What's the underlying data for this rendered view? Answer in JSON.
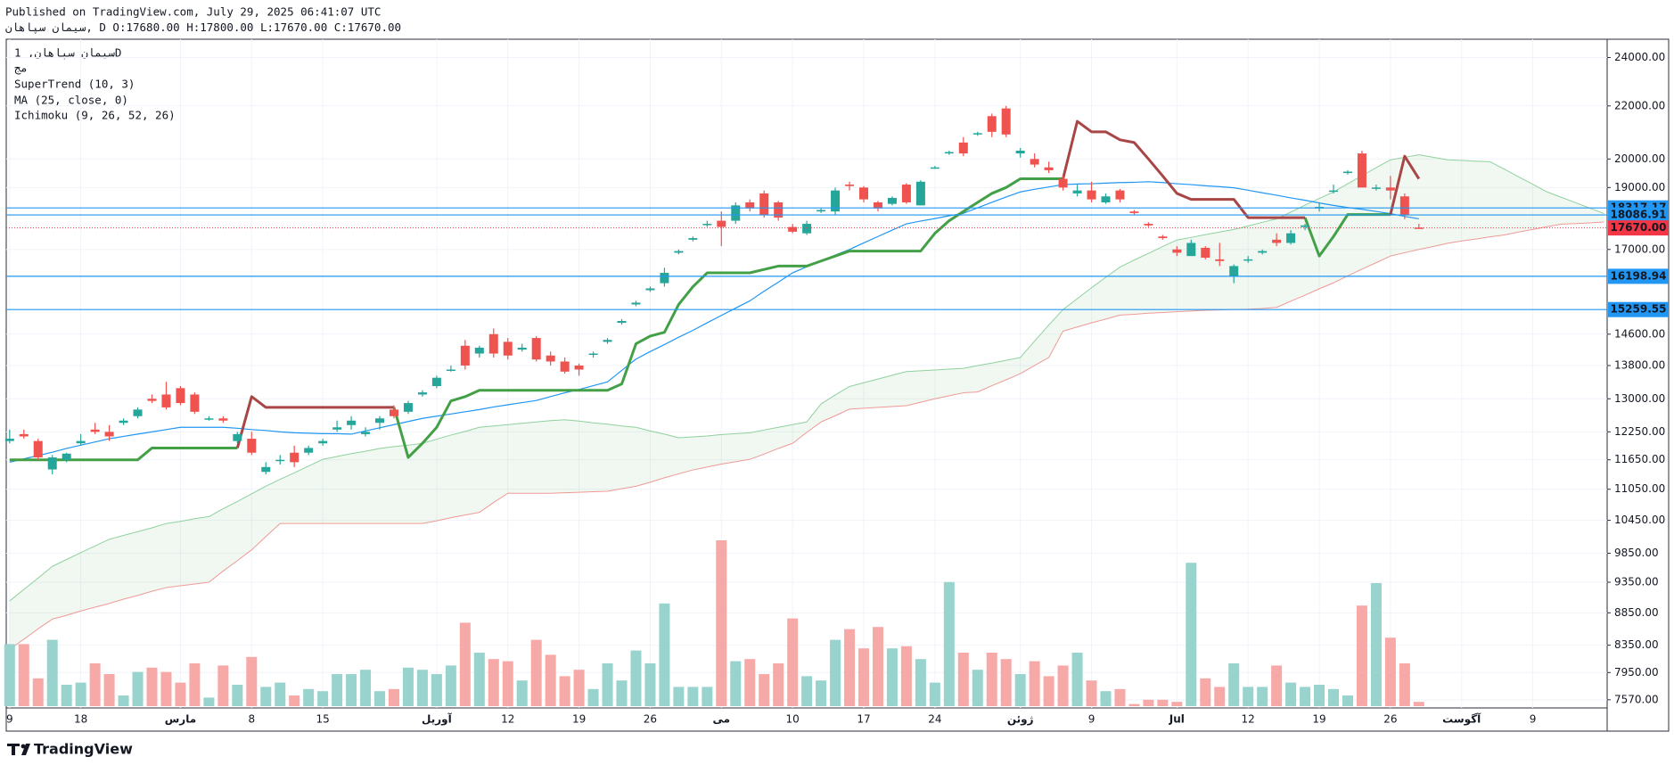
{
  "header": {
    "published": "Published on TradingView.com, July 29, 2025 06:41:07 UTC",
    "symbol": "سیمان سپاهان",
    "details": ", D O:17680.00 H:17800.00 L:17670.00 C:17670.00"
  },
  "footer": {
    "brand": "TradingView"
  },
  "chart_data": {
    "type": "candlestick",
    "legend": {
      "title": "سیمان سپاهان, 1D",
      "exchange": "مج",
      "indicators": [
        "SuperTrend (10, 3)",
        "MA (25, close, 0)",
        "Ichimoku (9, 26, 52, 26)"
      ]
    },
    "categories": [
      "9",
      null,
      null,
      null,
      null,
      "18",
      null,
      null,
      null,
      null,
      null,
      null,
      "مارس",
      null,
      null,
      null,
      null,
      "8",
      null,
      null,
      null,
      null,
      "15",
      null,
      null,
      null,
      null,
      null,
      null,
      null,
      "آوریل",
      null,
      null,
      null,
      null,
      "12",
      null,
      null,
      null,
      null,
      "19",
      null,
      null,
      null,
      null,
      "26",
      null,
      null,
      null,
      null,
      "می",
      null,
      null,
      null,
      null,
      "10",
      null,
      null,
      null,
      null,
      "17",
      null,
      null,
      null,
      null,
      "24",
      null,
      null,
      null,
      null,
      null,
      "ژوئن",
      null,
      null,
      null,
      null,
      "9",
      null,
      null,
      null,
      null,
      null,
      "Jul",
      null,
      null,
      null,
      null,
      "12",
      null,
      null,
      null,
      null,
      "19",
      null,
      null,
      null,
      null,
      "26",
      null,
      null,
      null,
      null,
      "آگوست",
      null,
      null,
      null,
      null,
      "9",
      null,
      null,
      null,
      null,
      null
    ],
    "open": [
      12050,
      12200,
      12050,
      11450,
      11650,
      12000,
      12300,
      12250,
      12450,
      12600,
      13000,
      13100,
      13250,
      13100,
      12550,
      12550,
      12050,
      12100,
      11400,
      11650,
      11800,
      11800,
      12000,
      12300,
      12400,
      12200,
      12450,
      12750,
      12700,
      13100,
      13300,
      13700,
      14300,
      14100,
      14600,
      14400,
      14200,
      14500,
      14050,
      13900,
      13800,
      14100,
      14400,
      14900,
      15400,
      15800,
      16000,
      16900,
      17300,
      17800,
      17900,
      17900,
      18500,
      18800,
      18500,
      17700,
      17500,
      18200,
      18200,
      19100,
      19000,
      18500,
      18450,
      19100,
      18400,
      19700,
      20200,
      20600,
      20900,
      21600,
      21900,
      20200,
      20000,
      19700,
      19300,
      18800,
      18900,
      18500,
      18900,
      18200,
      17800,
      17400,
      17000,
      16800,
      17050,
      16700,
      16200,
      16700,
      16900,
      17300,
      17200,
      17700,
      18300,
      18900,
      19500,
      20200,
      19000,
      19000,
      18700,
      17680,
      null,
      null,
      null,
      null,
      null,
      null,
      null,
      null,
      null,
      null,
      null,
      null,
      null
    ],
    "high": [
      12300,
      12300,
      12100,
      11750,
      11800,
      12200,
      12450,
      12400,
      12550,
      12800,
      13100,
      13400,
      13300,
      13150,
      12600,
      12600,
      12250,
      12250,
      11600,
      11750,
      11950,
      11950,
      12100,
      12500,
      12600,
      12350,
      12600,
      12850,
      12950,
      13200,
      13550,
      13800,
      14450,
      14300,
      14750,
      14500,
      14350,
      14550,
      14150,
      14000,
      13850,
      14150,
      14500,
      15000,
      15500,
      15900,
      16450,
      17000,
      17400,
      17900,
      18200,
      18500,
      18600,
      18900,
      18550,
      17800,
      17900,
      18300,
      19000,
      19200,
      19050,
      18550,
      18700,
      19150,
      19250,
      19750,
      20300,
      20800,
      21000,
      21700,
      22000,
      20400,
      20200,
      19900,
      19400,
      19100,
      19200,
      18800,
      18950,
      18250,
      17850,
      17450,
      17100,
      17300,
      17100,
      17200,
      16550,
      16800,
      17000,
      17500,
      17600,
      17800,
      18500,
      19100,
      19600,
      20300,
      19100,
      19400,
      18800,
      17800,
      null,
      null,
      null,
      null,
      null,
      null,
      null,
      null,
      null,
      null,
      null,
      null,
      null
    ],
    "low": [
      12000,
      12100,
      11650,
      11350,
      11600,
      11950,
      12200,
      12050,
      12400,
      12550,
      12900,
      12750,
      12850,
      12650,
      12500,
      12450,
      12000,
      11750,
      11350,
      11550,
      11500,
      11750,
      11950,
      12250,
      12300,
      12150,
      12300,
      12550,
      12650,
      13050,
      13250,
      13650,
      13700,
      14000,
      14000,
      13950,
      14150,
      13900,
      13800,
      13600,
      13550,
      14000,
      14350,
      14850,
      15350,
      15750,
      15900,
      16850,
      17250,
      17700,
      17100,
      17800,
      18200,
      18000,
      17900,
      17500,
      17450,
      18150,
      18100,
      18900,
      18500,
      18200,
      18400,
      18450,
      18400,
      19650,
      20150,
      20100,
      20850,
      20800,
      20800,
      20050,
      19700,
      19500,
      18900,
      18700,
      18500,
      18450,
      18500,
      18100,
      17700,
      17300,
      16800,
      16800,
      16700,
      16500,
      16000,
      16600,
      16850,
      17100,
      17150,
      17600,
      18200,
      18800,
      19450,
      19000,
      18900,
      18600,
      17950,
      17670,
      null,
      null,
      null,
      null,
      null,
      null,
      null,
      null,
      null,
      null,
      null,
      null,
      null
    ],
    "close": [
      12100,
      12150,
      11700,
      11700,
      11780,
      12050,
      12250,
      12150,
      12500,
      12750,
      12950,
      12800,
      12900,
      12700,
      12550,
      12500,
      12200,
      11800,
      11500,
      11650,
      11600,
      11900,
      12050,
      12350,
      12500,
      12250,
      12550,
      12600,
      12900,
      13150,
      13500,
      13700,
      13800,
      14250,
      14100,
      14050,
      14250,
      13950,
      13900,
      13650,
      13700,
      14100,
      14450,
      14950,
      15450,
      15850,
      16300,
      16950,
      17350,
      17800,
      17700,
      18400,
      18300,
      18100,
      18000,
      17550,
      17800,
      18250,
      18900,
      19050,
      18600,
      18300,
      18650,
      18500,
      19200,
      19700,
      20250,
      20200,
      20950,
      21000,
      20900,
      20300,
      19800,
      19600,
      19000,
      18900,
      18600,
      18700,
      18600,
      18150,
      17750,
      17350,
      16900,
      17200,
      16750,
      16650,
      16500,
      16700,
      16950,
      17200,
      17500,
      17750,
      18350,
      18900,
      19550,
      19000,
      19000,
      18900,
      18100,
      17670,
      null,
      null,
      null,
      null,
      null,
      null,
      null,
      null,
      null,
      null,
      null,
      null,
      null
    ],
    "volume": [
      58,
      58,
      26,
      62,
      20,
      22,
      40,
      30,
      10,
      32,
      36,
      32,
      22,
      40,
      8,
      38,
      20,
      46,
      18,
      22,
      10,
      16,
      14,
      30,
      30,
      34,
      14,
      16,
      36,
      34,
      30,
      38,
      78,
      50,
      44,
      42,
      24,
      62,
      48,
      28,
      34,
      16,
      40,
      24,
      52,
      40,
      96,
      18,
      18,
      18,
      155,
      42,
      44,
      30,
      40,
      82,
      28,
      24,
      62,
      72,
      54,
      74,
      54,
      56,
      44,
      22,
      116,
      50,
      34,
      50,
      44,
      30,
      42,
      28,
      38,
      50,
      24,
      14,
      16,
      2,
      6,
      6,
      4,
      134,
      26,
      18,
      40,
      18,
      18,
      38,
      22,
      18,
      20,
      16,
      10,
      94,
      115,
      64,
      40,
      4,
      null,
      null,
      null,
      null,
      null,
      null,
      null,
      null,
      null,
      null,
      null,
      null,
      null
    ],
    "up_color": "#26a69a",
    "down_color": "#ef5350",
    "volume_up_color": "#99d3cd",
    "volume_down_color": "#f7a9a7",
    "ma": {
      "color": "#2196f3",
      "values": [
        11600,
        11670,
        11740,
        11810,
        11890,
        11960,
        12030,
        12100,
        12150,
        12200,
        12250,
        12300,
        12350,
        12350,
        12350,
        12350,
        12330,
        12300,
        12280,
        12250,
        12230,
        12220,
        12210,
        12210,
        12200,
        12270,
        12340,
        12410,
        12480,
        12550,
        12600,
        12650,
        12700,
        12750,
        12810,
        12860,
        12910,
        12960,
        13050,
        13140,
        13220,
        13310,
        13400,
        13680,
        13960,
        14150,
        14330,
        14520,
        14700,
        14900,
        15100,
        15300,
        15500,
        15770,
        16030,
        16300,
        16480,
        16650,
        16830,
        17000,
        17200,
        17400,
        17600,
        17800,
        17890,
        17970,
        18060,
        18140,
        18320,
        18500,
        18680,
        18850,
        18940,
        19020,
        19100,
        19120,
        19130,
        19150,
        19170,
        19180,
        19200,
        19170,
        19130,
        19100,
        19060,
        19030,
        18990,
        18910,
        18820,
        18740,
        18650,
        18570,
        18480,
        18400,
        18330,
        18270,
        18200,
        18130,
        18040,
        17960,
        null,
        null,
        null,
        null,
        null,
        null,
        null,
        null,
        null,
        null,
        null,
        null,
        null
      ]
    },
    "supertrend_up": {
      "color": "#43a047",
      "values": [
        11650,
        11650,
        11650,
        11650,
        11650,
        11650,
        11650,
        11650,
        11650,
        11650,
        11900,
        11900,
        11900,
        11900,
        11900,
        11900,
        11900,
        null,
        null,
        null,
        null,
        null,
        null,
        null,
        null,
        null,
        null,
        12800,
        11700,
        12000,
        12350,
        12950,
        13050,
        13200,
        13200,
        13200,
        13200,
        13200,
        13200,
        13200,
        13200,
        13200,
        13200,
        13350,
        14350,
        14550,
        14650,
        15400,
        15900,
        16300,
        16300,
        16300,
        16300,
        16400,
        16500,
        16500,
        16500,
        16650,
        16800,
        16950,
        16950,
        16950,
        16950,
        16950,
        16950,
        17500,
        17900,
        18200,
        18500,
        18800,
        19000,
        19300,
        19300,
        19300,
        19300,
        null,
        null,
        null,
        null,
        null,
        null,
        null,
        null,
        null,
        null,
        null,
        null,
        null,
        null,
        null,
        null,
        18000,
        16800,
        17400,
        18100,
        18100,
        18100,
        18100,
        null,
        null,
        null,
        null,
        null,
        null,
        null,
        null,
        null,
        null,
        null,
        null,
        null,
        null,
        null
      ]
    },
    "supertrend_down": {
      "color": "#a84545",
      "values": [
        null,
        null,
        null,
        null,
        null,
        null,
        null,
        null,
        null,
        null,
        null,
        null,
        null,
        null,
        null,
        null,
        11900,
        13050,
        12800,
        12800,
        12800,
        12800,
        12800,
        12800,
        12800,
        12800,
        12800,
        12800,
        null,
        null,
        null,
        null,
        null,
        null,
        null,
        null,
        null,
        null,
        null,
        null,
        null,
        null,
        null,
        null,
        null,
        null,
        null,
        null,
        null,
        null,
        null,
        null,
        null,
        null,
        null,
        null,
        null,
        null,
        null,
        null,
        null,
        null,
        null,
        null,
        null,
        null,
        null,
        null,
        null,
        null,
        null,
        null,
        null,
        null,
        19300,
        21400,
        21000,
        21000,
        20700,
        20600,
        20000,
        19400,
        18800,
        18600,
        18600,
        18600,
        18600,
        18000,
        18000,
        18000,
        18000,
        18000,
        null,
        null,
        null,
        null,
        null,
        18100,
        20100,
        19300,
        null,
        null,
        null,
        null,
        null,
        null,
        null,
        null,
        null,
        null,
        null,
        null,
        null
      ]
    },
    "ichimoku_span_a": {
      "color": "#8fd19e",
      "values": [
        9040,
        9230,
        9420,
        9620,
        9740,
        9860,
        9980,
        10100,
        10170,
        10240,
        10310,
        10390,
        10430,
        10480,
        10520,
        10670,
        10810,
        10960,
        11110,
        11250,
        11380,
        11520,
        11660,
        11720,
        11780,
        11830,
        11890,
        11930,
        11960,
        12000,
        12090,
        12180,
        12260,
        12350,
        12380,
        12410,
        12440,
        12470,
        12500,
        12520,
        12490,
        12450,
        12420,
        12380,
        12350,
        12270,
        12200,
        12120,
        12140,
        12160,
        12190,
        12210,
        12230,
        12290,
        12350,
        12410,
        12470,
        12880,
        13090,
        13290,
        13380,
        13470,
        13560,
        13650,
        13670,
        13690,
        13710,
        13730,
        13800,
        13860,
        13930,
        14000,
        14420,
        14840,
        15260,
        15560,
        15870,
        16170,
        16470,
        16680,
        16880,
        17090,
        17290,
        17370,
        17460,
        17540,
        17620,
        17730,
        17850,
        17960,
        18180,
        18410,
        18630,
        18850,
        19130,
        19410,
        19690,
        19970,
        20060,
        20150,
        20060,
        19970,
        19950,
        19920,
        19900,
        19640,
        19370,
        19110,
        18850,
        18670,
        18490,
        18310,
        18130
      ]
    },
    "ichimoku_span_b": {
      "color": "#f09a96",
      "values": [
        8290,
        8440,
        8600,
        8750,
        8810,
        8880,
        8940,
        9000,
        9070,
        9130,
        9200,
        9260,
        9290,
        9320,
        9350,
        9540,
        9720,
        9910,
        10150,
        10390,
        10390,
        10390,
        10390,
        10390,
        10390,
        10390,
        10390,
        10390,
        10390,
        10390,
        10440,
        10500,
        10550,
        10600,
        10790,
        10970,
        10970,
        10970,
        10970,
        10980,
        10990,
        11000,
        11010,
        11060,
        11110,
        11190,
        11280,
        11360,
        11440,
        11500,
        11560,
        11610,
        11660,
        11770,
        11890,
        12000,
        12240,
        12470,
        12610,
        12760,
        12780,
        12800,
        12820,
        12840,
        12920,
        13000,
        13070,
        13140,
        13160,
        13310,
        13450,
        13600,
        13800,
        14000,
        14680,
        14790,
        14900,
        15000,
        15110,
        15130,
        15160,
        15180,
        15200,
        15220,
        15240,
        15250,
        15260,
        15270,
        15290,
        15320,
        15490,
        15660,
        15840,
        16010,
        16210,
        16410,
        16600,
        16800,
        16900,
        17000,
        17090,
        17190,
        17260,
        17320,
        17390,
        17450,
        17540,
        17620,
        17710,
        17790,
        17810,
        17830,
        17860
      ]
    },
    "cloud_color": "#43a047",
    "price_lines": [
      {
        "value": 18317.17,
        "color": "#2196f3"
      },
      {
        "value": 18086.91,
        "color": "#2196f3"
      },
      {
        "value": 16198.94,
        "color": "#2196f3"
      },
      {
        "value": 15259.55,
        "color": "#2196f3"
      }
    ],
    "last_price": {
      "value": 17670,
      "label": "17670.00",
      "color": "#f23645"
    },
    "log_scale": true,
    "grid": true,
    "ylim": [
      7460,
      24800
    ],
    "yticks": [
      {
        "value": 24000,
        "label": "24000.00"
      },
      {
        "value": 22000,
        "label": "22000.00"
      },
      {
        "value": 20000,
        "label": "20000.00"
      },
      {
        "value": 19000,
        "label": "19000.00"
      },
      {
        "value": 17000,
        "label": "17000.00"
      },
      {
        "value": 14600,
        "label": "14600.00"
      },
      {
        "value": 13800,
        "label": "13800.00"
      },
      {
        "value": 13000,
        "label": "13000.00"
      },
      {
        "value": 12250,
        "label": "12250.00"
      },
      {
        "value": 11650,
        "label": "11650.00"
      },
      {
        "value": 11050,
        "label": "11050.00"
      },
      {
        "value": 10450,
        "label": "10450.00"
      },
      {
        "value": 9850,
        "label": "9850.00"
      },
      {
        "value": 9350,
        "label": "9350.00"
      },
      {
        "value": 8850,
        "label": "8850.00"
      },
      {
        "value": 8350,
        "label": "8350.00"
      },
      {
        "value": 7950,
        "label": "7950.00"
      },
      {
        "value": 7570,
        "label": "7570.00"
      }
    ]
  }
}
